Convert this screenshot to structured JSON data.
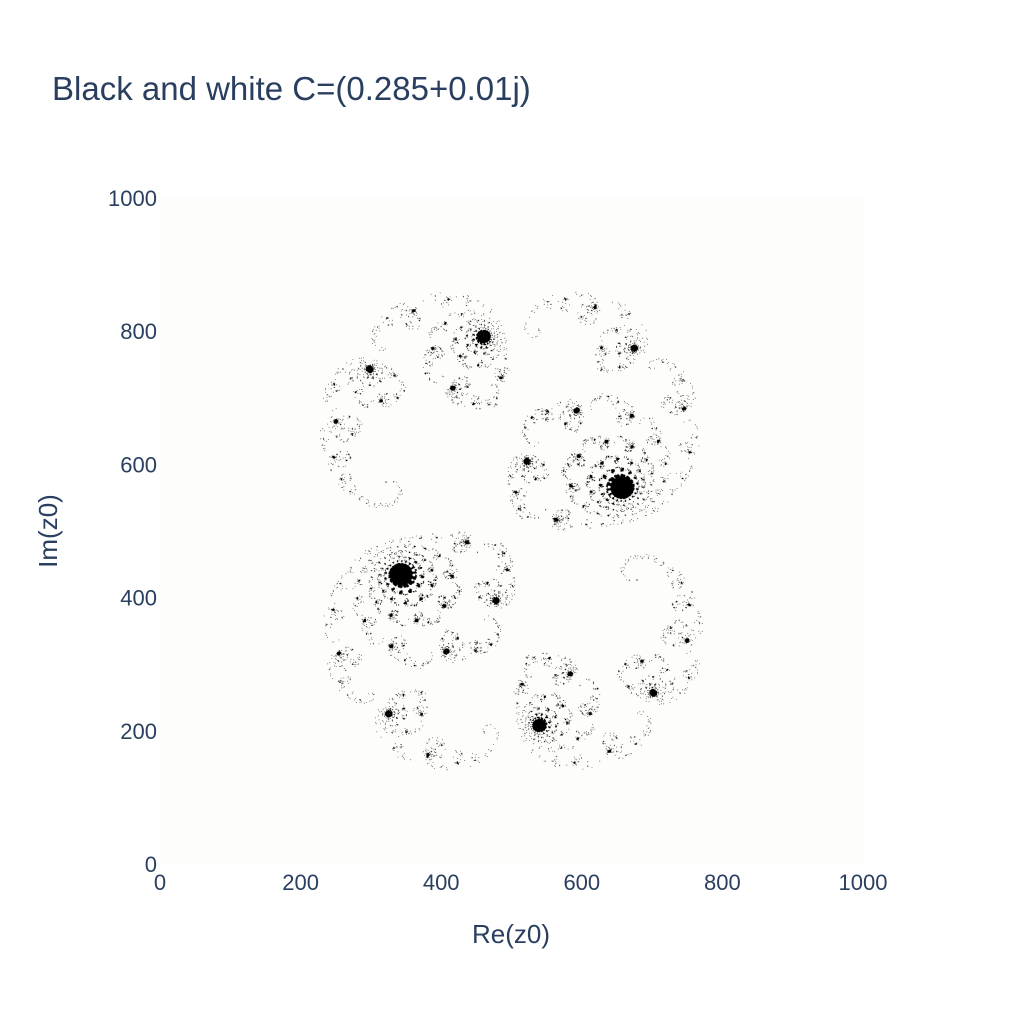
{
  "chart_data": {
    "type": "heatmap",
    "title": "Black and white C=(0.285+0.01j)",
    "xlabel": "Re(z0)",
    "ylabel": "Im(z0)",
    "xlim": [
      0,
      1000
    ],
    "ylim": [
      0,
      1000
    ],
    "xticks": [
      0,
      200,
      400,
      600,
      800,
      1000
    ],
    "yticks": [
      0,
      200,
      400,
      600,
      800,
      1000
    ],
    "grid": false,
    "colorscale": [
      "#fdfdfb",
      "#000000"
    ],
    "fractal": {
      "c_re": 0.285,
      "c_im": 0.01,
      "resolution": 1000,
      "re_range": [
        -1.5,
        1.5
      ],
      "im_range": [
        -1.5,
        1.5
      ],
      "max_iter": 100
    }
  }
}
